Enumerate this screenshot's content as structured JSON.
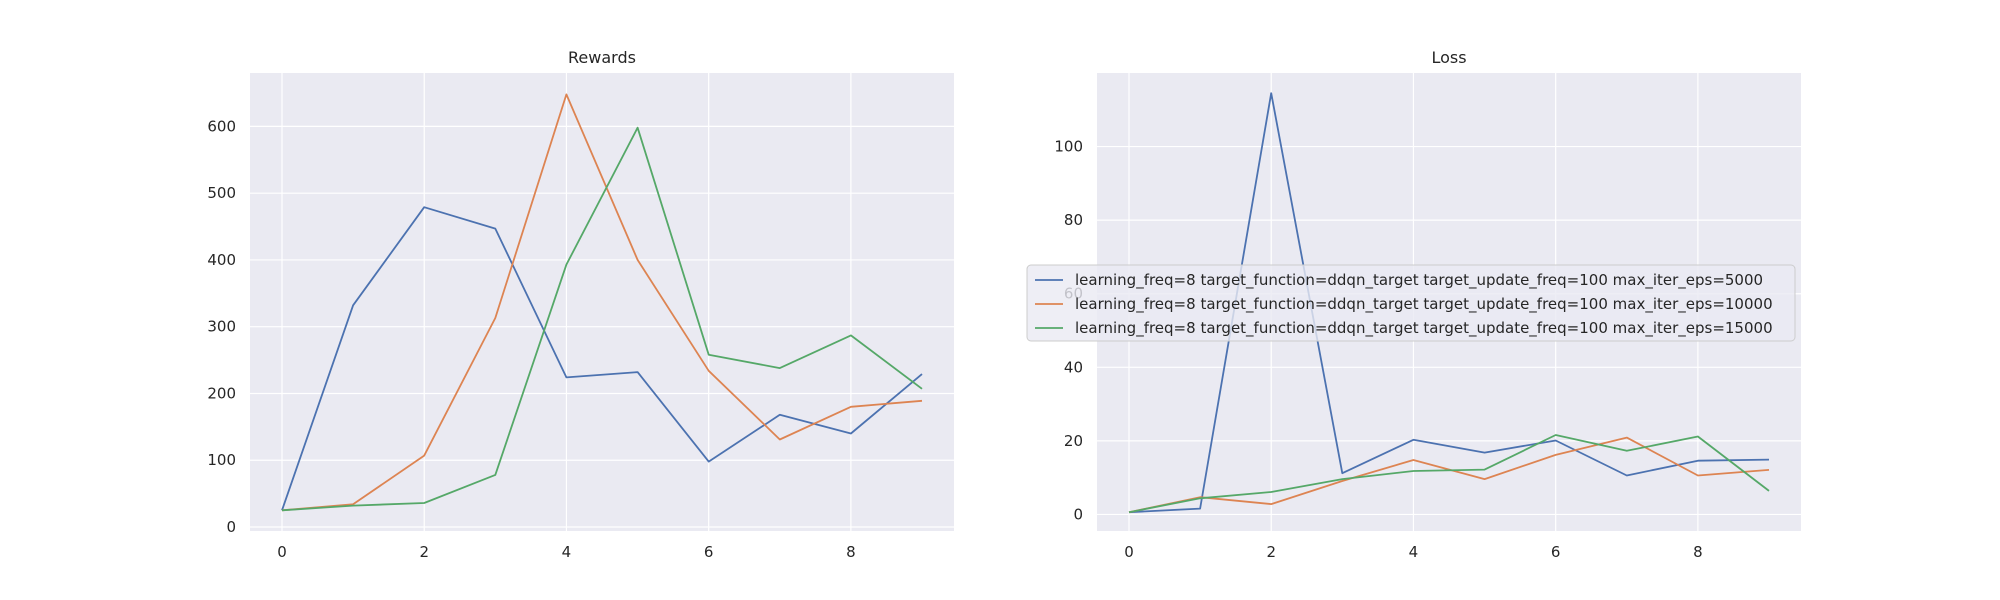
{
  "chart_data": [
    {
      "type": "line",
      "title": "Rewards",
      "xlabel": "",
      "ylabel": "",
      "x": [
        0,
        1,
        2,
        3,
        4,
        5,
        6,
        7,
        8,
        9
      ],
      "xticks": [
        0,
        2,
        4,
        6,
        8
      ],
      "yticks": [
        0,
        100,
        200,
        300,
        400,
        500,
        600
      ],
      "xlim": [
        -0.45,
        9.45
      ],
      "ylim": [
        -6,
        680
      ],
      "grid": true,
      "series": [
        {
          "name": "learning_freq=8 target_function=ddqn_target target_update_freq=100 max_iter_eps=5000",
          "color": "#4c72b0",
          "values": [
            25,
            332,
            479,
            447,
            224,
            232,
            98,
            168,
            140,
            229
          ]
        },
        {
          "name": "learning_freq=8 target_function=ddqn_target target_update_freq=100 max_iter_eps=10000",
          "color": "#dd8452",
          "values": [
            25,
            34,
            107,
            313,
            648,
            400,
            234,
            131,
            180,
            189
          ]
        },
        {
          "name": "learning_freq=8 target_function=ddqn_target target_update_freq=100 max_iter_eps=15000",
          "color": "#55a868",
          "values": [
            25,
            32,
            36,
            78,
            393,
            598,
            258,
            238,
            287,
            207
          ]
        }
      ]
    },
    {
      "type": "line",
      "title": "Loss",
      "xlabel": "",
      "ylabel": "",
      "x": [
        0,
        1,
        2,
        3,
        4,
        5,
        6,
        7,
        8,
        9
      ],
      "xticks": [
        0,
        2,
        4,
        6,
        8
      ],
      "yticks": [
        0,
        20,
        40,
        60,
        80,
        100
      ],
      "xlim": [
        -0.45,
        9.45
      ],
      "ylim": [
        -4.5,
        120
      ],
      "grid": true,
      "legend": "center",
      "series": [
        {
          "name": "learning_freq=8 target_function=ddqn_target target_update_freq=100 max_iter_eps=5000",
          "color": "#4c72b0",
          "values": [
            0.6,
            1.6,
            114.5,
            11.2,
            20.3,
            16.8,
            20.1,
            10.6,
            14.6,
            14.9
          ]
        },
        {
          "name": "learning_freq=8 target_function=ddqn_target target_update_freq=100 max_iter_eps=10000",
          "color": "#dd8452",
          "values": [
            0.6,
            4.7,
            2.8,
            9.1,
            14.8,
            9.6,
            16.2,
            20.9,
            10.6,
            12.1
          ]
        },
        {
          "name": "learning_freq=8 target_function=ddqn_target target_update_freq=100 max_iter_eps=15000",
          "color": "#55a868",
          "values": [
            0.6,
            4.4,
            6.1,
            9.6,
            11.8,
            12.2,
            21.6,
            17.3,
            21.2,
            6.4
          ]
        }
      ]
    }
  ]
}
